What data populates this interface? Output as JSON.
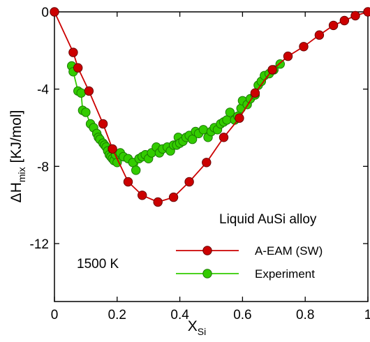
{
  "chart_data": {
    "type": "scatter",
    "title": "",
    "xlabel": "X",
    "xlabel_sub": "Si",
    "ylabel": "ΔH",
    "ylabel_sub": "mix",
    "ylabel_unit": " [KJ/mol]",
    "xlim": [
      0,
      1
    ],
    "ylim": [
      -15,
      0
    ],
    "x_ticks": [
      0,
      0.2,
      0.4,
      0.6,
      0.8,
      1
    ],
    "x_tick_labels": [
      "0",
      "0.2",
      "0.4",
      "0.6",
      "0.8",
      "1"
    ],
    "y_ticks": [
      0,
      -4,
      -8,
      -12
    ],
    "y_tick_labels": [
      "0",
      "-4",
      "-8",
      "-12"
    ],
    "grid": false,
    "legend_position": "bottom-right",
    "annotations": [
      "Liquid AuSi alloy",
      "1500 K"
    ],
    "series": [
      {
        "name": "A-EAM (SW)",
        "color": "#cc0000",
        "line": true,
        "x": [
          0,
          0.06,
          0.075,
          0.11,
          0.155,
          0.185,
          0.235,
          0.28,
          0.33,
          0.38,
          0.43,
          0.485,
          0.54,
          0.59,
          0.64,
          0.695,
          0.745,
          0.795,
          0.845,
          0.89,
          0.925,
          0.96,
          1
        ],
        "y": [
          0,
          -2.1,
          -2.9,
          -4.1,
          -5.8,
          -7.1,
          -8.8,
          -9.5,
          -9.85,
          -9.6,
          -8.8,
          -7.8,
          -6.5,
          -5.5,
          -4.2,
          -3.0,
          -2.3,
          -1.8,
          -1.2,
          -0.7,
          -0.45,
          -0.2,
          0
        ]
      },
      {
        "name": "Experiment",
        "color": "#33cc00",
        "line": true,
        "x": [
          0.055,
          0.06,
          0.075,
          0.085,
          0.09,
          0.1,
          0.115,
          0.125,
          0.135,
          0.14,
          0.145,
          0.155,
          0.16,
          0.165,
          0.17,
          0.175,
          0.18,
          0.185,
          0.19,
          0.195,
          0.2,
          0.21,
          0.22,
          0.235,
          0.25,
          0.26,
          0.27,
          0.28,
          0.29,
          0.3,
          0.31,
          0.325,
          0.335,
          0.345,
          0.36,
          0.37,
          0.38,
          0.39,
          0.395,
          0.4,
          0.41,
          0.42,
          0.43,
          0.44,
          0.45,
          0.46,
          0.475,
          0.49,
          0.5,
          0.51,
          0.52,
          0.53,
          0.54,
          0.55,
          0.56,
          0.575,
          0.585,
          0.595,
          0.6,
          0.615,
          0.625,
          0.64,
          0.65,
          0.66,
          0.67,
          0.685,
          0.7,
          0.72
        ],
        "y": [
          -2.8,
          -3.1,
          -4.1,
          -4.2,
          -5.1,
          -5.2,
          -5.8,
          -6.0,
          -6.3,
          -6.5,
          -6.6,
          -6.8,
          -6.9,
          -7.0,
          -7.2,
          -7.4,
          -7.5,
          -7.6,
          -7.7,
          -7.4,
          -7.8,
          -7.3,
          -7.5,
          -7.6,
          -7.8,
          -8.2,
          -7.6,
          -7.5,
          -7.4,
          -7.6,
          -7.3,
          -7.0,
          -7.3,
          -7.1,
          -7.0,
          -7.2,
          -6.9,
          -6.9,
          -6.5,
          -6.8,
          -6.7,
          -6.5,
          -6.4,
          -6.6,
          -6.2,
          -6.3,
          -6.1,
          -6.5,
          -6.2,
          -6.0,
          -6.1,
          -5.8,
          -5.7,
          -5.6,
          -5.2,
          -5.6,
          -5.4,
          -5.0,
          -4.6,
          -4.8,
          -4.5,
          -4.3,
          -3.8,
          -3.6,
          -3.3,
          -3.2,
          -3.0,
          -2.7
        ]
      }
    ]
  }
}
